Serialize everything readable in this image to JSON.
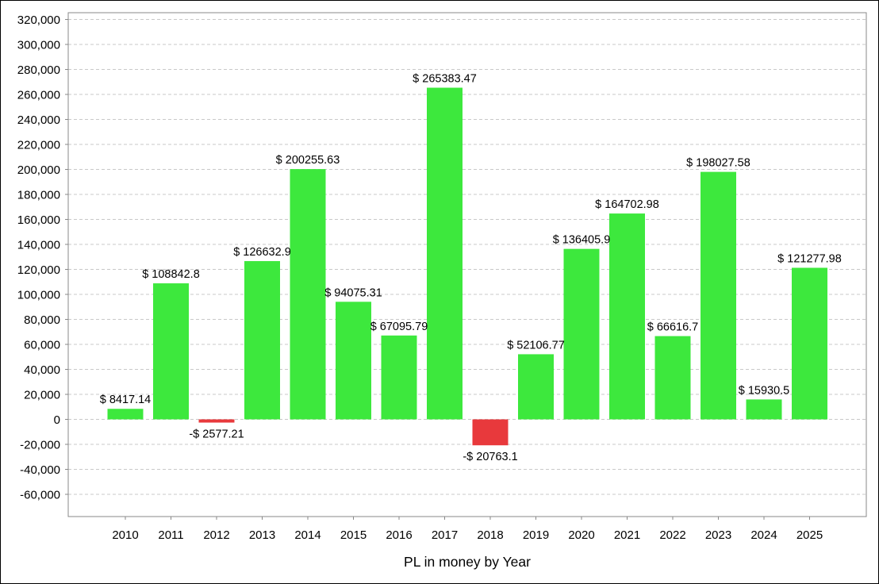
{
  "chart_data": {
    "type": "bar",
    "title": "",
    "xlabel": "PL in money by Year",
    "ylabel": "",
    "ylim": [
      -80000,
      320000
    ],
    "yticks": [
      320000,
      300000,
      280000,
      260000,
      240000,
      220000,
      200000,
      180000,
      160000,
      140000,
      120000,
      100000,
      80000,
      60000,
      40000,
      20000,
      0,
      -20000,
      -40000,
      -60000
    ],
    "ytick_labels": [
      "320,000",
      "300,000",
      "280,000",
      "260,000",
      "240,000",
      "220,000",
      "200,000",
      "180,000",
      "160,000",
      "140,000",
      "120,000",
      "100,000",
      "80,000",
      "60,000",
      "40,000",
      "20,000",
      "0",
      "-20,000",
      "-40,000",
      "-60,000"
    ],
    "categories": [
      "2010",
      "2011",
      "2012",
      "2013",
      "2014",
      "2015",
      "2016",
      "2017",
      "2018",
      "2019",
      "2020",
      "2021",
      "2022",
      "2023",
      "2024",
      "2025"
    ],
    "values": [
      8417.14,
      108842.8,
      -2577.21,
      126632.9,
      200255.63,
      94075.31,
      67095.79,
      265383.47,
      -20763.1,
      52106.77,
      136405.9,
      164702.98,
      66616.7,
      198027.58,
      15930.5,
      121277.98
    ],
    "data_labels": [
      "$ 8417.14",
      "$ 108842.8",
      "-$ 2577.21",
      "$ 126632.9",
      "$ 200255.63",
      "$ 94075.31",
      "$ 67095.79",
      "$ 265383.47",
      "-$ 20763.1",
      "$ 52106.77",
      "$ 136405.9",
      "$ 164702.98",
      "$ 66616.7",
      "$ 198027.58",
      "$ 15930.5",
      "$ 121277.98"
    ],
    "grid": true,
    "colors": {
      "positive": "#3de83d",
      "negative": "#e8393c",
      "grid": "#c8c8c8",
      "axis": "#888888"
    }
  }
}
